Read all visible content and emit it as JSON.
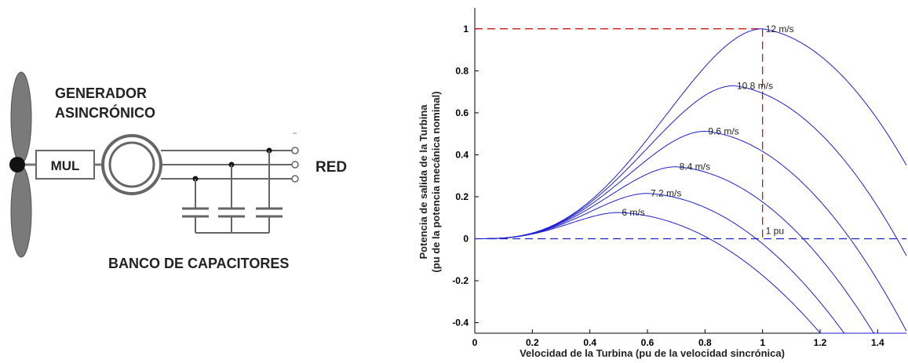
{
  "diagram": {
    "generator_line1": "GENERADOR",
    "generator_line2": "ASINCRÓNICO",
    "gearbox": "MUL",
    "grid": "RED",
    "capacitor_bank": "BANCO DE CAPACITORES"
  },
  "chart_data": {
    "type": "line",
    "xlabel": "Velocidad de la Turbina (pu de la velocidad sincrónica)",
    "ylabel_line1": "Potencia de salida de la Turbina",
    "ylabel_line2": "(pu de la potencia mecánica nominal)",
    "xlim": [
      0,
      1.5
    ],
    "ylim": [
      -0.45,
      1.1
    ],
    "x_ticks": [
      "0",
      "0.2",
      "0.4",
      "0.6",
      "0.8",
      "1",
      "1.2",
      "1.4"
    ],
    "y_ticks": [
      "-0.4",
      "-0.2",
      "0",
      "0.2",
      "0.4",
      "0.6",
      "0.8",
      "1"
    ],
    "series": [
      {
        "name": "6 m/s",
        "peak_x": 0.5,
        "peak_y": 0.125
      },
      {
        "name": "7.2 m/s",
        "peak_x": 0.6,
        "peak_y": 0.216
      },
      {
        "name": "8.4 m/s",
        "peak_x": 0.7,
        "peak_y": 0.343
      },
      {
        "name": "9.6 m/s",
        "peak_x": 0.8,
        "peak_y": 0.512
      },
      {
        "name": "10.8 m/s",
        "peak_x": 0.9,
        "peak_y": 0.729
      },
      {
        "name": "12 m/s",
        "peak_x": 1.0,
        "peak_y": 1.0
      }
    ],
    "annotation": "1 pu",
    "reference_lines": {
      "h": 1.0,
      "v": 1.0,
      "zero": 0
    },
    "colors": {
      "curves": "#1f1fd0",
      "reference": "#cc0000",
      "zero_line": "#1f1fd0"
    }
  }
}
